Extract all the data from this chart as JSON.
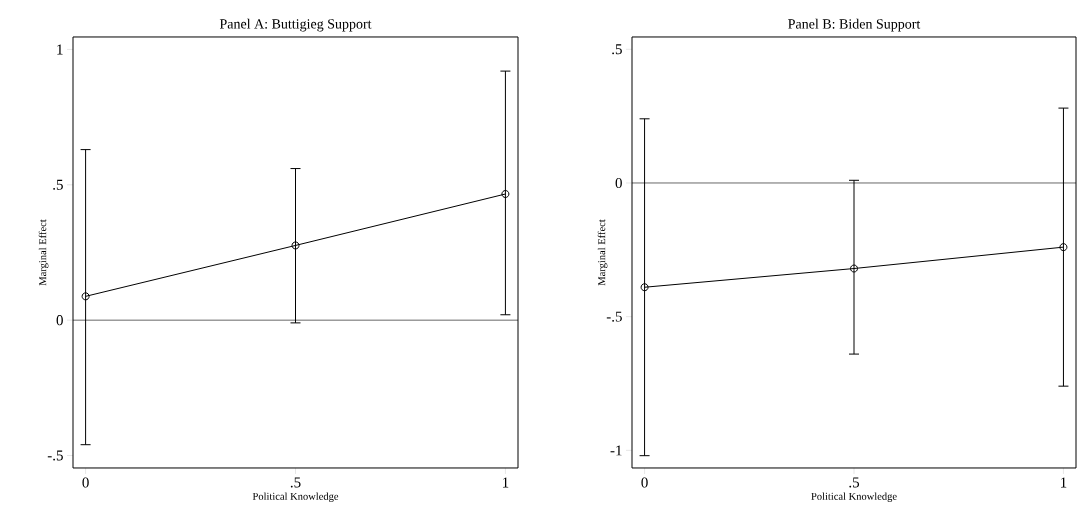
{
  "chart_data": [
    {
      "type": "line",
      "title": "Panel A: Buttigieg Support",
      "xlabel": "Political Knowledge",
      "ylabel": "Marginal Effect",
      "x": [
        0,
        0.5,
        1
      ],
      "series": [
        {
          "color": "#000000",
          "values": [
            0.088,
            0.276,
            0.466
          ],
          "errors": [
            [
              -0.46,
              0.63
            ],
            [
              -0.01,
              0.56
            ],
            [
              0.02,
              0.92
            ]
          ]
        }
      ],
      "xlim": [
        -0.03,
        1.03
      ],
      "ylim": [
        -0.546,
        1.046
      ],
      "xticks": [
        0,
        {
          "value": 0.5,
          "label": ".5"
        },
        1
      ],
      "yticks": [
        {
          "value": -0.5,
          "label": "-.5"
        },
        0,
        {
          "value": 0.5,
          "label": ".5"
        },
        1
      ],
      "ref_lines": [
        {
          "axis": "y",
          "value": 0
        }
      ],
      "marker": "circle",
      "line_style": "solid",
      "grid": false
    },
    {
      "type": "line",
      "title": "Panel B: Biden Support",
      "xlabel": "Political Knowledge",
      "ylabel": "Marginal Effect",
      "x": [
        0,
        0.5,
        1
      ],
      "series": [
        {
          "color": "#000000",
          "values": [
            -0.39,
            -0.32,
            -0.24
          ],
          "errors": [
            [
              -1.02,
              0.24
            ],
            [
              -0.64,
              0.01
            ],
            [
              -0.76,
              0.28
            ]
          ]
        }
      ],
      "xlim": [
        -0.03,
        1.03
      ],
      "ylim": [
        -1.066,
        0.546
      ],
      "xticks": [
        0,
        {
          "value": 0.5,
          "label": ".5"
        },
        1
      ],
      "yticks": [
        {
          "value": -1,
          "label": "-1"
        },
        {
          "value": -0.5,
          "label": "-.5"
        },
        0,
        {
          "value": 0.5,
          "label": ".5"
        }
      ],
      "ref_lines": [
        {
          "axis": "y",
          "value": 0
        }
      ],
      "marker": "circle",
      "line_style": "solid",
      "grid": false
    }
  ]
}
